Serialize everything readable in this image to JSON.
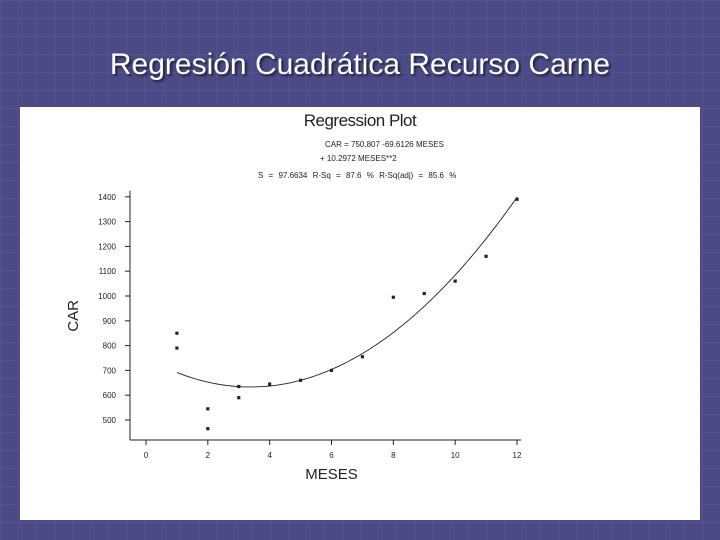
{
  "slide": {
    "title": "Regresión Cuadrática Recurso Carne"
  },
  "colors": {
    "background": "#4a4a86",
    "panel": "#ffffff",
    "ink": "#222222"
  },
  "chart_data": {
    "type": "scatter",
    "title": "Regression Plot",
    "equation_line1": "CAR = 750.807 -69.6126 MESES",
    "equation_line2": "+ 10.2972 MESES**2",
    "stats": "S = 97.6634   R-Sq = 87.6 %   R-Sq(adj) = 85.6 %",
    "xlabel": "MESES",
    "ylabel": "CAR",
    "xlim": [
      0,
      12
    ],
    "ylim": [
      450,
      1400
    ],
    "x_ticks": [
      "0",
      "2",
      "4",
      "6",
      "8",
      "10",
      "12"
    ],
    "y_ticks": [
      "500",
      "600",
      "700",
      "800",
      "900",
      "1000",
      "1100",
      "1200",
      "1300",
      "1400"
    ],
    "fit": {
      "type": "quadratic",
      "intercept": 750.807,
      "b1": -69.6126,
      "b2": 10.2972
    },
    "points": [
      {
        "x": 1,
        "y": 850
      },
      {
        "x": 1,
        "y": 790
      },
      {
        "x": 2,
        "y": 545
      },
      {
        "x": 2,
        "y": 465
      },
      {
        "x": 3,
        "y": 635
      },
      {
        "x": 3,
        "y": 590
      },
      {
        "x": 4,
        "y": 645
      },
      {
        "x": 5,
        "y": 660
      },
      {
        "x": 6,
        "y": 700
      },
      {
        "x": 7,
        "y": 755
      },
      {
        "x": 8,
        "y": 995
      },
      {
        "x": 9,
        "y": 1010
      },
      {
        "x": 10,
        "y": 1060
      },
      {
        "x": 11,
        "y": 1160
      },
      {
        "x": 12,
        "y": 1390
      }
    ],
    "grid": false,
    "legend": "none"
  }
}
